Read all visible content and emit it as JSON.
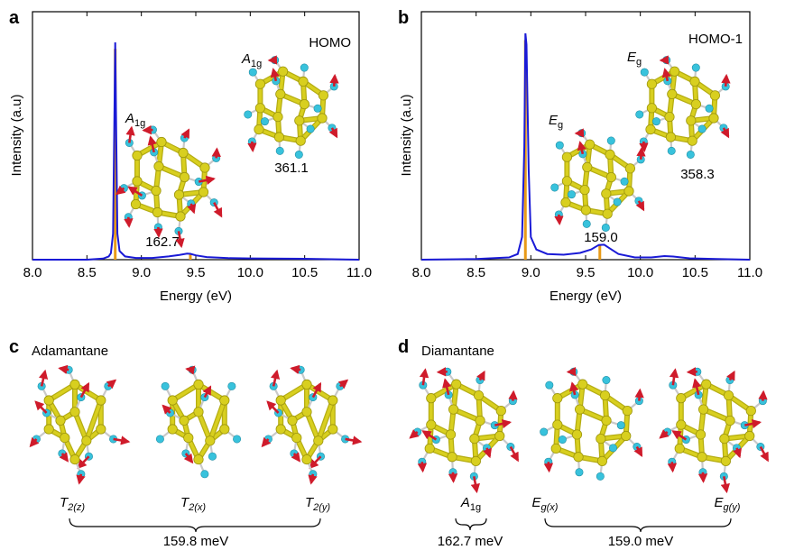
{
  "panels": {
    "a": {
      "letter": "a",
      "corner_label": "HOMO",
      "xlabel": "Energy (eV)",
      "ylabel": "Intensity (a.u)",
      "modes": [
        {
          "sym_main": "A",
          "sym_sub": "1g",
          "energy": "162.7"
        },
        {
          "sym_main": "A",
          "sym_sub": "1g",
          "energy": "361.1"
        }
      ]
    },
    "b": {
      "letter": "b",
      "corner_label": "HOMO-1",
      "xlabel": "Energy (eV)",
      "ylabel": "Intensity (a.u)",
      "modes": [
        {
          "sym_main": "E",
          "sym_sub": "g",
          "energy": "159.0"
        },
        {
          "sym_main": "E",
          "sym_sub": "g",
          "energy": "358.3"
        }
      ]
    },
    "c": {
      "letter": "c",
      "title": "Adamantane",
      "modes": [
        {
          "sym_main": "T",
          "sym_sub": "2(z)"
        },
        {
          "sym_main": "T",
          "sym_sub": "2(x)"
        },
        {
          "sym_main": "T",
          "sym_sub": "2(y)"
        }
      ],
      "group_energy": "159.8 meV"
    },
    "d": {
      "letter": "d",
      "title": "Diamantane",
      "modes": [
        {
          "sym_main": "A",
          "sym_sub": "1g"
        },
        {
          "sym_main": "E",
          "sym_sub": "g(x)"
        },
        {
          "sym_main": "E",
          "sym_sub": "g(y)"
        }
      ],
      "energy_a1g": "162.7 meV",
      "energy_eg": "159.0 meV"
    }
  },
  "chart_data": [
    {
      "type": "line",
      "panel": "a",
      "xlabel": "Energy (eV)",
      "ylabel": "Intensity (a.u)",
      "xlim": [
        8.0,
        11.0
      ],
      "ylim": [
        0,
        1
      ],
      "x_ticks": [
        "8.0",
        "8.5",
        "9.0",
        "9.5",
        "10.0",
        "10.5",
        "11.0"
      ],
      "series": [
        {
          "color": "#1a1ad6",
          "x": [
            8.0,
            8.5,
            8.65,
            8.7,
            8.72,
            8.74,
            8.75,
            8.76,
            8.77,
            8.78,
            8.8,
            8.85,
            8.95,
            9.1,
            9.25,
            9.35,
            9.42,
            9.45,
            9.5,
            9.6,
            9.8,
            10.0,
            10.5,
            11.0
          ],
          "y": [
            0.0,
            0.0,
            0.005,
            0.015,
            0.03,
            0.12,
            0.55,
            1.0,
            0.55,
            0.12,
            0.04,
            0.015,
            0.008,
            0.008,
            0.015,
            0.022,
            0.028,
            0.027,
            0.02,
            0.012,
            0.007,
            0.006,
            0.004,
            0.0
          ]
        }
      ],
      "sticks": {
        "color": "#e89a17",
        "x": [
          8.76,
          9.45
        ],
        "y": [
          0.97,
          0.028
        ]
      }
    },
    {
      "type": "line",
      "panel": "b",
      "xlabel": "Energy (eV)",
      "ylabel": "Intensity (a.u)",
      "xlim": [
        8.0,
        11.0
      ],
      "ylim": [
        0,
        1
      ],
      "x_ticks": [
        "8.0",
        "8.5",
        "9.0",
        "9.5",
        "10.0",
        "10.5",
        "11.0"
      ],
      "series": [
        {
          "color": "#1a1ad6",
          "x": [
            8.0,
            8.5,
            8.8,
            8.88,
            8.92,
            8.94,
            8.95,
            8.96,
            8.98,
            9.0,
            9.05,
            9.15,
            9.3,
            9.45,
            9.55,
            9.62,
            9.67,
            9.72,
            9.8,
            9.95,
            10.1,
            10.22,
            10.3,
            10.45,
            10.7,
            11.0
          ],
          "y": [
            0.0,
            0.003,
            0.01,
            0.025,
            0.1,
            0.5,
            1.0,
            0.95,
            0.4,
            0.1,
            0.045,
            0.025,
            0.022,
            0.03,
            0.045,
            0.065,
            0.066,
            0.05,
            0.025,
            0.01,
            0.01,
            0.016,
            0.014,
            0.006,
            0.003,
            0.0
          ]
        }
      ],
      "sticks": {
        "color": "#e89a17",
        "x": [
          8.95,
          9.63
        ],
        "y": [
          0.97,
          0.066
        ]
      }
    }
  ],
  "colors": {
    "curve": "#1a1ad6",
    "stick": "#e89a17",
    "carbon": "#d8cf1f",
    "hydrogen": "#38c2dc",
    "arrow": "#cf1b2b"
  }
}
